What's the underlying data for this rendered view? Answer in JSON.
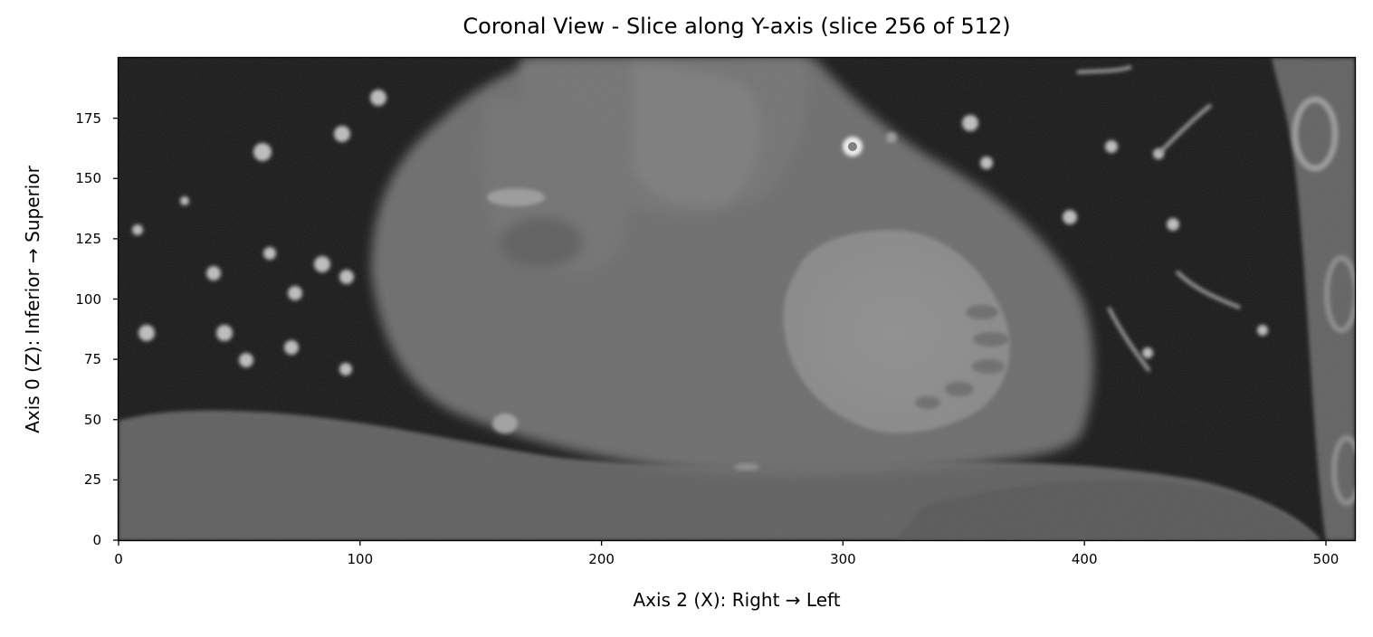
{
  "figure": {
    "title": "Coronal View - Slice along Y-axis (slice 256 of 512)",
    "xlabel": "Axis 2 (X): Right → Left",
    "ylabel": "Axis 0 (Z): Inferior → Superior"
  },
  "chart_data": {
    "type": "heatmap",
    "colormap": "gray",
    "title": "Coronal View - Slice along Y-axis (slice 256 of 512)",
    "xlabel": "Axis 2 (X): Right → Left",
    "ylabel": "Axis 0 (Z): Inferior → Superior",
    "xlim": [
      0,
      512
    ],
    "ylim": [
      0,
      200
    ],
    "x_ticks": [
      0,
      100,
      200,
      300,
      400,
      500
    ],
    "y_ticks": [
      0,
      25,
      50,
      75,
      100,
      125,
      150,
      175
    ],
    "grid": false,
    "legend": "none",
    "image_content": "grayscale CT coronal slice of the heart between dark lungs, with liver/diaphragm along the bottom"
  }
}
